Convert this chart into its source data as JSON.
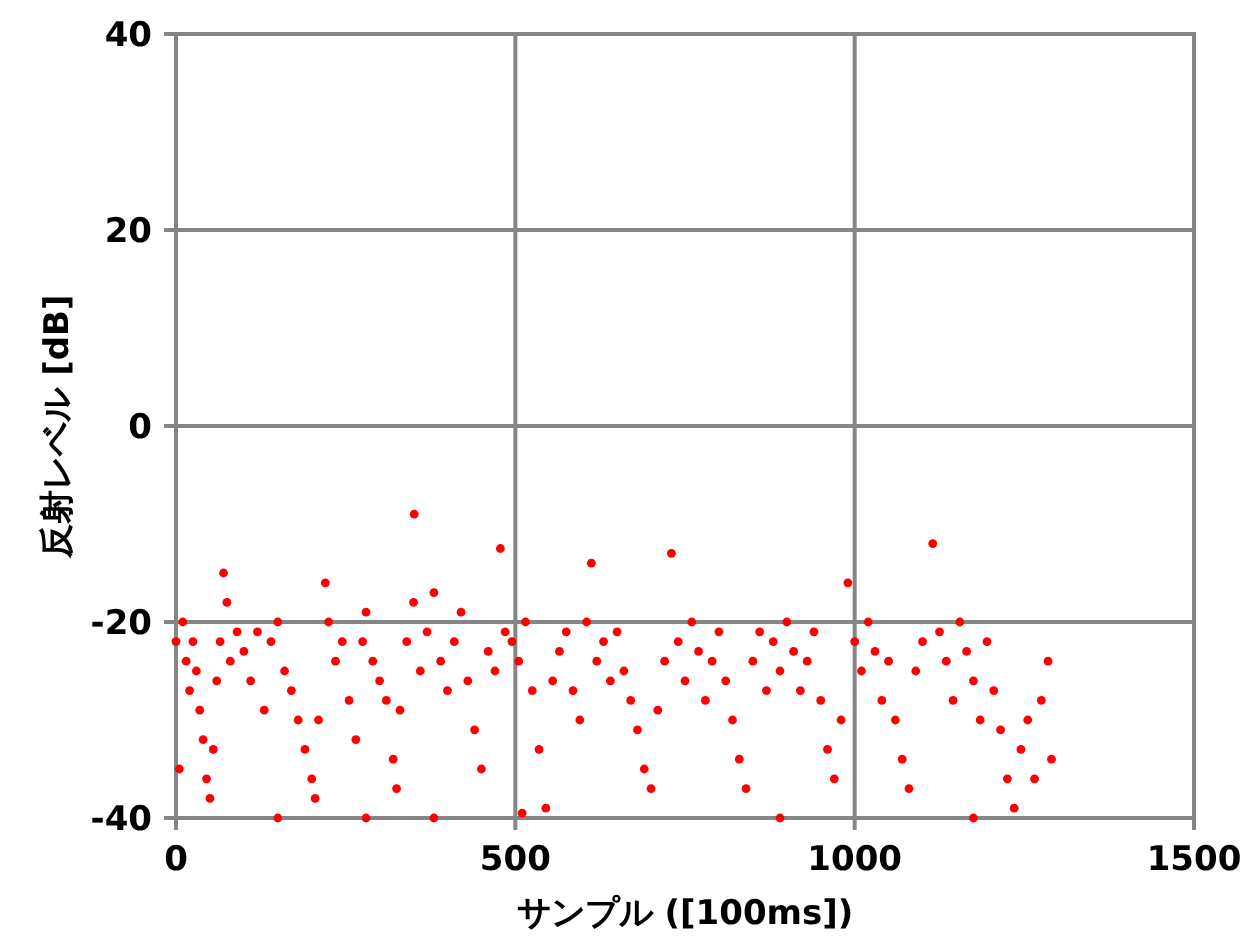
{
  "chart_data": {
    "type": "scatter",
    "xlabel": "サンプル ([100ms])",
    "ylabel": "反射レベル [dB]",
    "xlim": [
      0,
      1500
    ],
    "ylim": [
      -40,
      40
    ],
    "xticks": [
      0,
      500,
      1000,
      1500
    ],
    "yticks": [
      -40,
      -20,
      0,
      20,
      40
    ],
    "grid": true,
    "marker": "circle",
    "series": [
      {
        "color": "#ff0000",
        "x": [
          0,
          5,
          10,
          15,
          20,
          25,
          30,
          35,
          40,
          45,
          50,
          55,
          60,
          65,
          70,
          75,
          80,
          90,
          100,
          110,
          120,
          130,
          140,
          150,
          160,
          170,
          180,
          190,
          200,
          205,
          210,
          220,
          225,
          235,
          245,
          255,
          265,
          275,
          280,
          290,
          300,
          310,
          320,
          325,
          330,
          340,
          350,
          351,
          360,
          370,
          380,
          390,
          400,
          410,
          420,
          430,
          440,
          450,
          460,
          470,
          478,
          485,
          495,
          505,
          515,
          525,
          535,
          545,
          555,
          565,
          575,
          585,
          595,
          605,
          612,
          620,
          630,
          640,
          650,
          660,
          670,
          680,
          690,
          700,
          710,
          720,
          730,
          740,
          750,
          760,
          770,
          780,
          790,
          800,
          810,
          820,
          830,
          840,
          850,
          860,
          870,
          880,
          890,
          900,
          910,
          920,
          930,
          940,
          950,
          960,
          970,
          980,
          990,
          1000,
          1010,
          1020,
          1030,
          1040,
          1050,
          1060,
          1070,
          1080,
          1090,
          1100,
          1115,
          1125,
          1135,
          1145,
          1155,
          1165,
          1175,
          1185,
          1195,
          1205,
          1215,
          1225,
          1235,
          1245,
          1255,
          1265,
          1275,
          1285,
          1290,
          150,
          280,
          380,
          510,
          890,
          1175
        ],
        "values": [
          -22,
          -35,
          -20,
          -24,
          -27,
          -22,
          -25,
          -29,
          -32,
          -36,
          -38,
          -33,
          -26,
          -22,
          -15,
          -18,
          -24,
          -21,
          -23,
          -26,
          -21,
          -29,
          -22,
          -20,
          -25,
          -27,
          -30,
          -33,
          -36,
          -38,
          -30,
          -16,
          -20,
          -24,
          -22,
          -28,
          -32,
          -22,
          -19,
          -24,
          -26,
          -28,
          -34,
          -37,
          -29,
          -22,
          -18,
          -9,
          -25,
          -21,
          -17,
          -24,
          -27,
          -22,
          -19,
          -26,
          -31,
          -35,
          -23,
          -25,
          -12.5,
          -21,
          -22,
          -24,
          -20,
          -27,
          -33,
          -39,
          -26,
          -23,
          -21,
          -27,
          -30,
          -20,
          -14,
          -24,
          -22,
          -26,
          -21,
          -25,
          -28,
          -31,
          -35,
          -37,
          -29,
          -24,
          -13,
          -22,
          -26,
          -20,
          -23,
          -28,
          -24,
          -21,
          -26,
          -30,
          -34,
          -37,
          -24,
          -21,
          -27,
          -22,
          -25,
          -20,
          -23,
          -27,
          -24,
          -21,
          -28,
          -33,
          -36,
          -30,
          -16,
          -22,
          -25,
          -20,
          -23,
          -28,
          -24,
          -30,
          -34,
          -37,
          -25,
          -22,
          -12,
          -21,
          -24,
          -28,
          -20,
          -23,
          -26,
          -30,
          -22,
          -27,
          -31,
          -36,
          -39,
          -33,
          -30,
          -36,
          -28,
          -24,
          -34,
          -40,
          -40,
          -40,
          -39.5,
          -40,
          -40
        ]
      }
    ]
  }
}
